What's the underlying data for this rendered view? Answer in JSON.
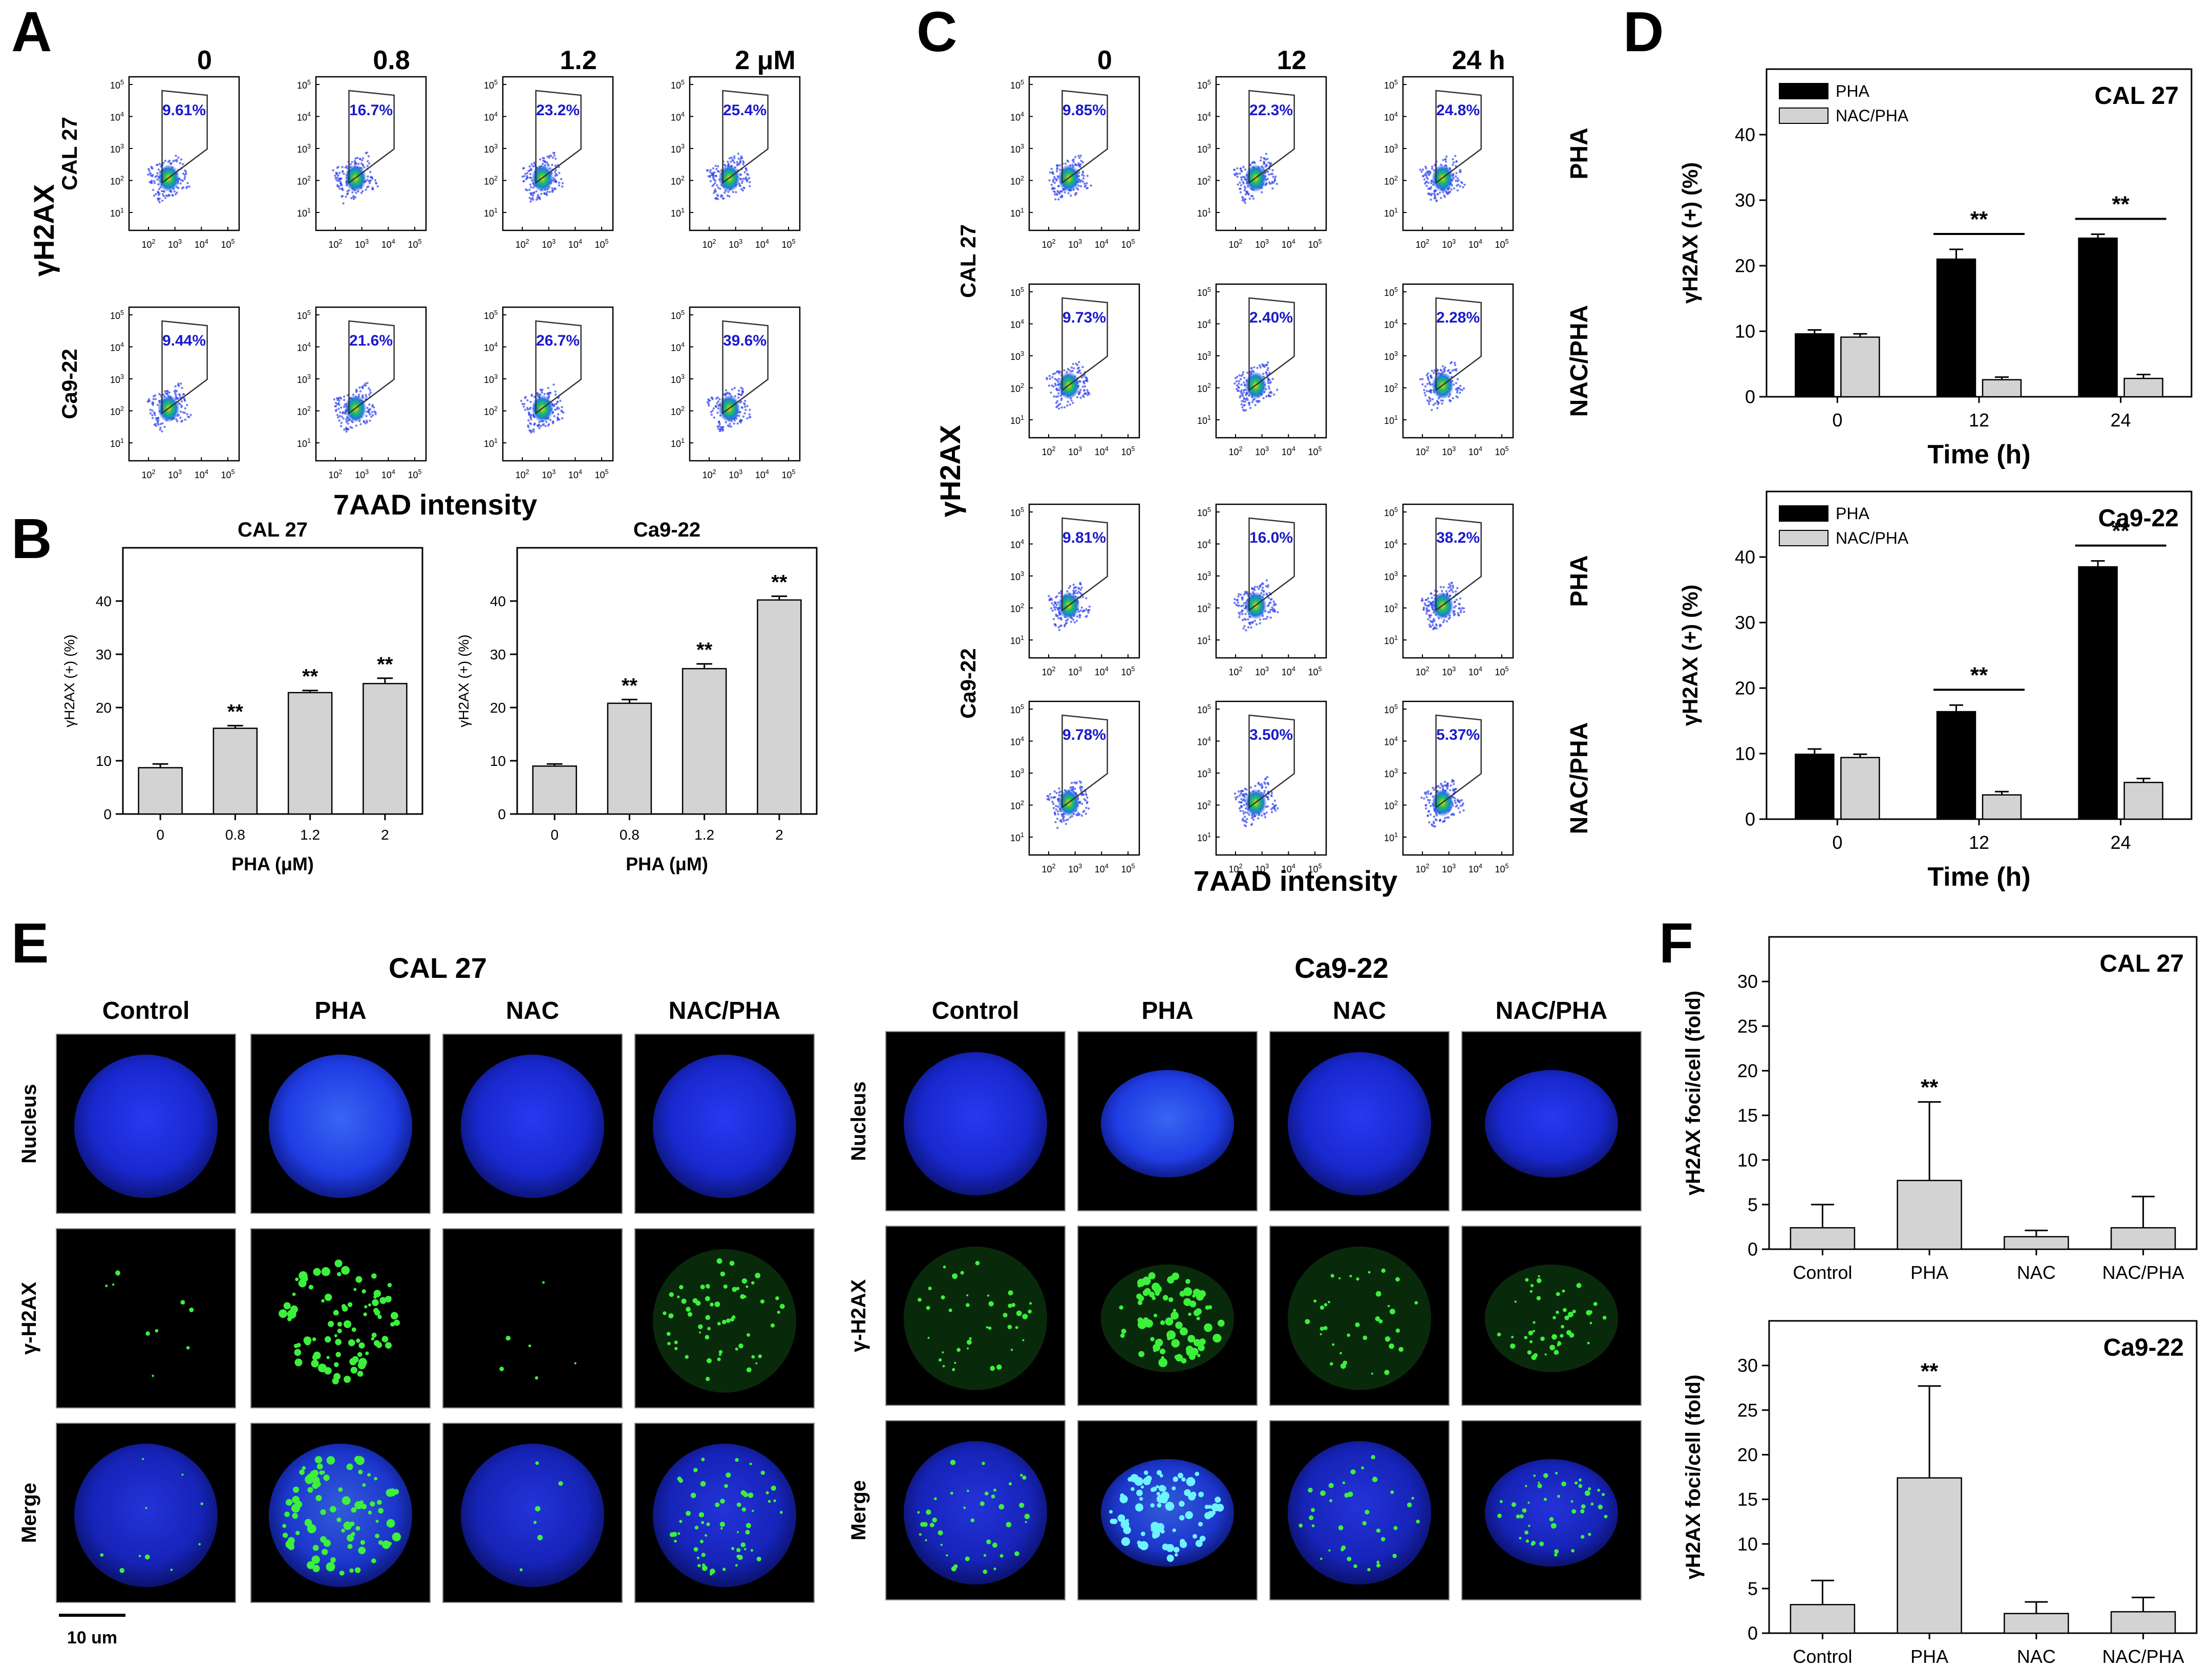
{
  "figure": {
    "panels": {
      "A": {
        "letter": "A"
      },
      "B": {
        "letter": "B"
      },
      "C": {
        "letter": "C"
      },
      "D": {
        "letter": "D"
      },
      "E": {
        "letter": "E"
      },
      "F": {
        "letter": "F"
      }
    }
  },
  "flow_cytometry": {
    "A": {
      "column_headers": [
        "0",
        "0.8",
        "1.2",
        "2 μM"
      ],
      "row_labels": [
        "CAL 27",
        "Ca9-22"
      ],
      "y_label": "γH2AX",
      "x_label": "7AAD intensity",
      "percentages": [
        [
          "9.61%",
          "16.7%",
          "23.2%",
          "25.4%"
        ],
        [
          "9.44%",
          "21.6%",
          "26.7%",
          "39.6%"
        ]
      ],
      "y_ticks": [
        "10^5",
        "10^4",
        "10^3",
        "10^2",
        "10^1"
      ],
      "x_ticks": [
        "10^2",
        "10^3",
        "10^4",
        "10^5"
      ]
    },
    "C": {
      "column_headers": [
        "0",
        "12",
        "24 h"
      ],
      "cell_labels": [
        "CAL 27",
        "Ca9-22"
      ],
      "treatment_labels": [
        "PHA",
        "NAC/PHA",
        "PHA",
        "NAC/PHA"
      ],
      "y_label": "γH2AX",
      "x_label": "7AAD intensity",
      "percentages": [
        [
          "9.85%",
          "22.3%",
          "24.8%"
        ],
        [
          "9.73%",
          "2.40%",
          "2.28%"
        ],
        [
          "9.81%",
          "16.0%",
          "38.2%"
        ],
        [
          "9.78%",
          "3.50%",
          "5.37%"
        ]
      ],
      "y_ticks": [
        "10^5",
        "10^4",
        "10^3",
        "10^2",
        "10^1"
      ],
      "x_ticks": [
        "10^2",
        "10^3",
        "10^4",
        "10^5"
      ]
    }
  },
  "microscopy": {
    "E": {
      "groups": [
        {
          "title": "CAL 27",
          "columns": [
            "Control",
            "PHA",
            "NAC",
            "NAC/PHA"
          ]
        },
        {
          "title": "Ca9-22",
          "columns": [
            "Control",
            "PHA",
            "NAC",
            "NAC/PHA"
          ]
        }
      ],
      "row_labels": [
        "Nucleus",
        "γ-H2AX",
        "Merge"
      ],
      "scale_bar": "10 um"
    }
  },
  "chart_data": [
    {
      "panel": "B",
      "type": "bar",
      "title": "CAL 27",
      "categories": [
        "0",
        "0.8",
        "1.2",
        "2"
      ],
      "values": [
        8.7,
        16.1,
        22.8,
        24.5
      ],
      "errors": [
        0.7,
        0.5,
        0.4,
        1.0
      ],
      "significance": [
        "",
        "**",
        "**",
        "**"
      ],
      "xlabel": "PHA (μM)",
      "ylabel": "γH2AX (+) (%)",
      "ylim": [
        0,
        50
      ],
      "yticks": [
        0,
        10,
        20,
        30,
        40
      ],
      "bar_color": "#d3d3d3"
    },
    {
      "panel": "B",
      "type": "bar",
      "title": "Ca9-22",
      "categories": [
        "0",
        "0.8",
        "1.2",
        "2"
      ],
      "values": [
        9.0,
        20.8,
        27.3,
        40.2
      ],
      "errors": [
        0.4,
        0.7,
        0.9,
        0.7
      ],
      "significance": [
        "",
        "**",
        "**",
        "**"
      ],
      "xlabel": "PHA (μM)",
      "ylabel": "γH2AX (+) (%)",
      "ylim": [
        0,
        50
      ],
      "yticks": [
        0,
        10,
        20,
        30,
        40
      ],
      "bar_color": "#d3d3d3"
    },
    {
      "panel": "D",
      "type": "bar",
      "title": "CAL 27",
      "categories": [
        "0",
        "12",
        "24"
      ],
      "series": [
        {
          "name": "PHA",
          "color": "#000000",
          "values": [
            9.6,
            21.0,
            24.2
          ],
          "errors": [
            0.6,
            1.5,
            0.6
          ]
        },
        {
          "name": "NAC/PHA",
          "color": "#d3d3d3",
          "values": [
            9.1,
            2.6,
            2.8
          ],
          "errors": [
            0.5,
            0.4,
            0.6
          ]
        }
      ],
      "significance": [
        "",
        "**",
        "**"
      ],
      "xlabel": "Time (h)",
      "ylabel": "γH2AX (+) (%)",
      "ylim": [
        0,
        50
      ],
      "yticks": [
        0,
        10,
        20,
        30,
        40
      ],
      "legend": "top-left"
    },
    {
      "panel": "D",
      "type": "bar",
      "title": "Ca9-22",
      "categories": [
        "0",
        "12",
        "24"
      ],
      "series": [
        {
          "name": "PHA",
          "color": "#000000",
          "values": [
            9.9,
            16.4,
            38.5
          ],
          "errors": [
            0.8,
            1.0,
            0.9
          ]
        },
        {
          "name": "NAC/PHA",
          "color": "#d3d3d3",
          "values": [
            9.4,
            3.7,
            5.6
          ],
          "errors": [
            0.5,
            0.5,
            0.6
          ]
        }
      ],
      "significance": [
        "",
        "**",
        "**"
      ],
      "xlabel": "Time (h)",
      "ylabel": "γH2AX (+) (%)",
      "ylim": [
        0,
        50
      ],
      "yticks": [
        0,
        10,
        20,
        30,
        40
      ],
      "legend": "top-left"
    },
    {
      "panel": "F",
      "type": "bar",
      "title": "CAL 27",
      "categories": [
        "Control",
        "PHA",
        "NAC",
        "NAC/PHA"
      ],
      "values": [
        2.4,
        7.7,
        1.4,
        2.4
      ],
      "errors": [
        2.6,
        8.8,
        0.7,
        3.5
      ],
      "significance": [
        "",
        "**",
        "",
        ""
      ],
      "xlabel": "",
      "ylabel": "γH2AX foci/cell (fold)",
      "ylim": [
        0,
        35
      ],
      "yticks": [
        0,
        5,
        10,
        15,
        20,
        25,
        30
      ],
      "bar_color": "#d3d3d3"
    },
    {
      "panel": "F",
      "type": "bar",
      "title": "Ca9-22",
      "categories": [
        "Control",
        "PHA",
        "NAC",
        "NAC/PHA"
      ],
      "values": [
        3.2,
        17.4,
        2.2,
        2.4
      ],
      "errors": [
        2.7,
        10.3,
        1.3,
        1.6
      ],
      "significance": [
        "",
        "**",
        "",
        ""
      ],
      "xlabel": "",
      "ylabel": "γH2AX foci/cell (fold)",
      "ylim": [
        0,
        35
      ],
      "yticks": [
        0,
        5,
        10,
        15,
        20,
        25,
        30
      ],
      "bar_color": "#d3d3d3"
    }
  ]
}
